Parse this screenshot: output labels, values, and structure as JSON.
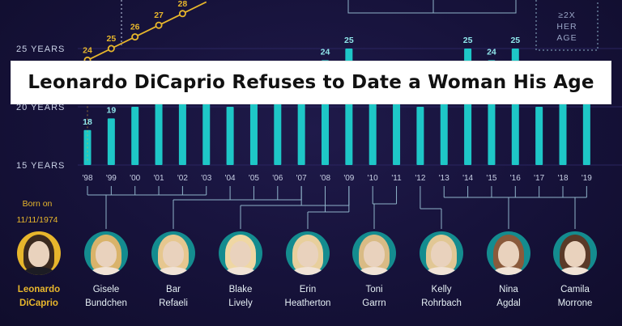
{
  "title": "Leonardo DiCaprio Refuses to Date a Woman His Age",
  "colors": {
    "background": "#16123a",
    "bar": "#1ec7c7",
    "leo": "#e7b62c",
    "teal_avatar": "#148c8f",
    "axis_text": "#c9d1e6",
    "connector": "#8fb3c9"
  },
  "annotation": {
    "text": [
      "≥2X",
      "HER",
      "AGE"
    ]
  },
  "born": {
    "line1": "Born on",
    "line2": "11/11/1974"
  },
  "chart_data": {
    "type": "bar",
    "y_ticks": [
      "15 YEARS",
      "20 YEARS",
      "25 YEARS"
    ],
    "ylim": [
      15,
      27.5
    ],
    "categories": [
      "'98",
      "'99",
      "'00",
      "'01",
      "'02",
      "'03",
      "'04",
      "'05",
      "'06",
      "'07",
      "'08",
      "'09",
      "'10",
      "'11",
      "'12",
      "'13",
      "'14",
      "'15",
      "'16",
      "'17",
      "'18",
      "'19"
    ],
    "series": [
      {
        "values": [
          18,
          19,
          20,
          21,
          22,
          23,
          20,
          21,
          22,
          23,
          24,
          25,
          23,
          21,
          20,
          21,
          25,
          24,
          25,
          20,
          21,
          22
        ]
      }
    ],
    "value_labels": [
      "18",
      "19",
      "",
      "",
      "",
      "23",
      "",
      "",
      "",
      "23",
      "24",
      "25",
      "23",
      "",
      "",
      "",
      "25",
      "24",
      "25",
      "",
      "",
      ""
    ],
    "leo_age": {
      "points": [
        {
          "x": "'98",
          "value": 24
        },
        {
          "x": "'99",
          "value": 25
        },
        {
          "x": "'00",
          "value": 26
        },
        {
          "x": "'01",
          "value": 27
        },
        {
          "x": "'02",
          "value": 28
        }
      ]
    }
  },
  "people": [
    {
      "first": "Leonardo",
      "last": "DiCaprio",
      "color": "#e7b62c",
      "name_color": "#e7b62c",
      "is_leo": true
    },
    {
      "first": "Gisele",
      "last": "Bundchen",
      "color": "#148c8f"
    },
    {
      "first": "Bar",
      "last": "Refaeli",
      "color": "#148c8f"
    },
    {
      "first": "Blake",
      "last": "Lively",
      "color": "#148c8f"
    },
    {
      "first": "Erin",
      "last": "Heatherton",
      "color": "#148c8f"
    },
    {
      "first": "Toni",
      "last": "Garrn",
      "color": "#148c8f"
    },
    {
      "first": "Kelly",
      "last": "Rohrbach",
      "color": "#148c8f"
    },
    {
      "first": "Nina",
      "last": "Agdal",
      "color": "#148c8f"
    },
    {
      "first": "Camila",
      "last": "Morrone",
      "color": "#148c8f"
    }
  ]
}
